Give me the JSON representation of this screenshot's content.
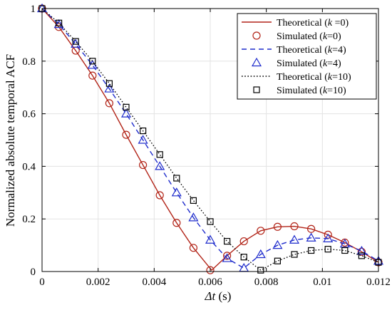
{
  "chart_data": {
    "type": "line",
    "xlabel_italic": "Δt",
    "xlabel_unit": " (s)",
    "ylabel": "Normalized absolute temporal ACF",
    "xlim": [
      0,
      0.012
    ],
    "ylim": [
      0,
      1
    ],
    "x_ticks": [
      0,
      0.002,
      0.004,
      0.006,
      0.008,
      0.01,
      0.012
    ],
    "x_tick_labels": [
      "0",
      "0.002",
      "0.004",
      "0.006",
      "0.008",
      "0.01",
      "0.012"
    ],
    "y_ticks": [
      0,
      0.2,
      0.4,
      0.6,
      0.8,
      1
    ],
    "y_tick_labels": [
      "0",
      "0.2",
      "0.4",
      "0.6",
      "0.8",
      "1"
    ],
    "grid": true,
    "legend_placement": "top-right",
    "series": [
      {
        "name": "Theoretical (k =0)",
        "legend_prefix": "Theoretical (",
        "legend_k": "k",
        "legend_suffix": " =0)",
        "kind": "line",
        "color": "#b22418",
        "dash": "solid",
        "x": [
          0,
          0.0006,
          0.0012,
          0.0018,
          0.0024,
          0.003,
          0.0036,
          0.0042,
          0.0048,
          0.0054,
          0.00605,
          0.0066,
          0.0072,
          0.0078,
          0.0084,
          0.009,
          0.0096,
          0.0102,
          0.0108,
          0.0114,
          0.012
        ],
        "y": [
          1,
          0.93,
          0.84,
          0.745,
          0.64,
          0.52,
          0.405,
          0.29,
          0.185,
          0.09,
          0.005,
          0.06,
          0.115,
          0.155,
          0.17,
          0.172,
          0.162,
          0.14,
          0.11,
          0.075,
          0.035
        ]
      },
      {
        "name": "Simulated (k=0)",
        "legend_prefix": "Simulated (",
        "legend_k": "k",
        "legend_suffix": "=0)",
        "kind": "marker",
        "marker": "circle",
        "color": "#b22418",
        "x": [
          0,
          0.0006,
          0.0012,
          0.0018,
          0.0024,
          0.003,
          0.0036,
          0.0042,
          0.0048,
          0.0054,
          0.006,
          0.0066,
          0.0072,
          0.0078,
          0.0084,
          0.009,
          0.0096,
          0.0102,
          0.0108,
          0.0114,
          0.012
        ],
        "y": [
          1,
          0.93,
          0.84,
          0.745,
          0.64,
          0.52,
          0.405,
          0.29,
          0.185,
          0.09,
          0.005,
          0.06,
          0.115,
          0.155,
          0.17,
          0.172,
          0.162,
          0.14,
          0.11,
          0.075,
          0.035
        ]
      },
      {
        "name": "Theoretical (k=4)",
        "legend_prefix": "Theoretical (",
        "legend_k": "k",
        "legend_suffix": "=4)",
        "kind": "line",
        "color": "#1f2ccc",
        "dash": "dashed",
        "x": [
          0,
          0.0006,
          0.0012,
          0.0018,
          0.0024,
          0.003,
          0.0036,
          0.0042,
          0.0048,
          0.0054,
          0.006,
          0.0066,
          0.0072,
          0.0078,
          0.0084,
          0.009,
          0.0096,
          0.0102,
          0.0108,
          0.0114,
          0.012
        ],
        "y": [
          1,
          0.94,
          0.865,
          0.785,
          0.695,
          0.6,
          0.5,
          0.4,
          0.3,
          0.205,
          0.12,
          0.05,
          0.013,
          0.065,
          0.1,
          0.12,
          0.128,
          0.125,
          0.105,
          0.078,
          0.04
        ]
      },
      {
        "name": "Simulated (k=4)",
        "legend_prefix": "Simulated (",
        "legend_k": "k",
        "legend_suffix": "=4)",
        "kind": "marker",
        "marker": "triangle",
        "color": "#1f2ccc",
        "x": [
          0,
          0.0006,
          0.0012,
          0.0018,
          0.0024,
          0.003,
          0.0036,
          0.0042,
          0.0048,
          0.0054,
          0.006,
          0.0066,
          0.0072,
          0.0078,
          0.0084,
          0.009,
          0.0096,
          0.0102,
          0.0108,
          0.0114,
          0.012
        ],
        "y": [
          1,
          0.94,
          0.865,
          0.785,
          0.695,
          0.6,
          0.5,
          0.4,
          0.3,
          0.205,
          0.12,
          0.05,
          0.013,
          0.065,
          0.1,
          0.12,
          0.128,
          0.125,
          0.105,
          0.078,
          0.04
        ]
      },
      {
        "name": "Theoretical (k=10)",
        "legend_prefix": "Theoretical (",
        "legend_k": "k",
        "legend_suffix": "=10)",
        "kind": "line",
        "color": "#000000",
        "dash": "dotted",
        "x": [
          0,
          0.0006,
          0.0012,
          0.0018,
          0.0024,
          0.003,
          0.0036,
          0.0042,
          0.0048,
          0.0054,
          0.006,
          0.0066,
          0.0072,
          0.0078,
          0.0084,
          0.009,
          0.0096,
          0.0102,
          0.0108,
          0.0114,
          0.012
        ],
        "y": [
          1,
          0.945,
          0.875,
          0.8,
          0.715,
          0.625,
          0.535,
          0.445,
          0.355,
          0.27,
          0.19,
          0.115,
          0.055,
          0.005,
          0.04,
          0.065,
          0.08,
          0.085,
          0.08,
          0.06,
          0.035
        ]
      },
      {
        "name": "Simulated (k=10)",
        "legend_prefix": "Simulated (",
        "legend_k": "k",
        "legend_suffix": "=10)",
        "kind": "marker",
        "marker": "square",
        "color": "#000000",
        "x": [
          0,
          0.0006,
          0.0012,
          0.0018,
          0.0024,
          0.003,
          0.0036,
          0.0042,
          0.0048,
          0.0054,
          0.006,
          0.0066,
          0.0072,
          0.0078,
          0.0084,
          0.009,
          0.0096,
          0.0102,
          0.0108,
          0.0114,
          0.012
        ],
        "y": [
          1,
          0.945,
          0.875,
          0.8,
          0.715,
          0.625,
          0.535,
          0.445,
          0.355,
          0.27,
          0.19,
          0.115,
          0.055,
          0.005,
          0.04,
          0.065,
          0.08,
          0.085,
          0.08,
          0.06,
          0.035
        ]
      }
    ]
  }
}
